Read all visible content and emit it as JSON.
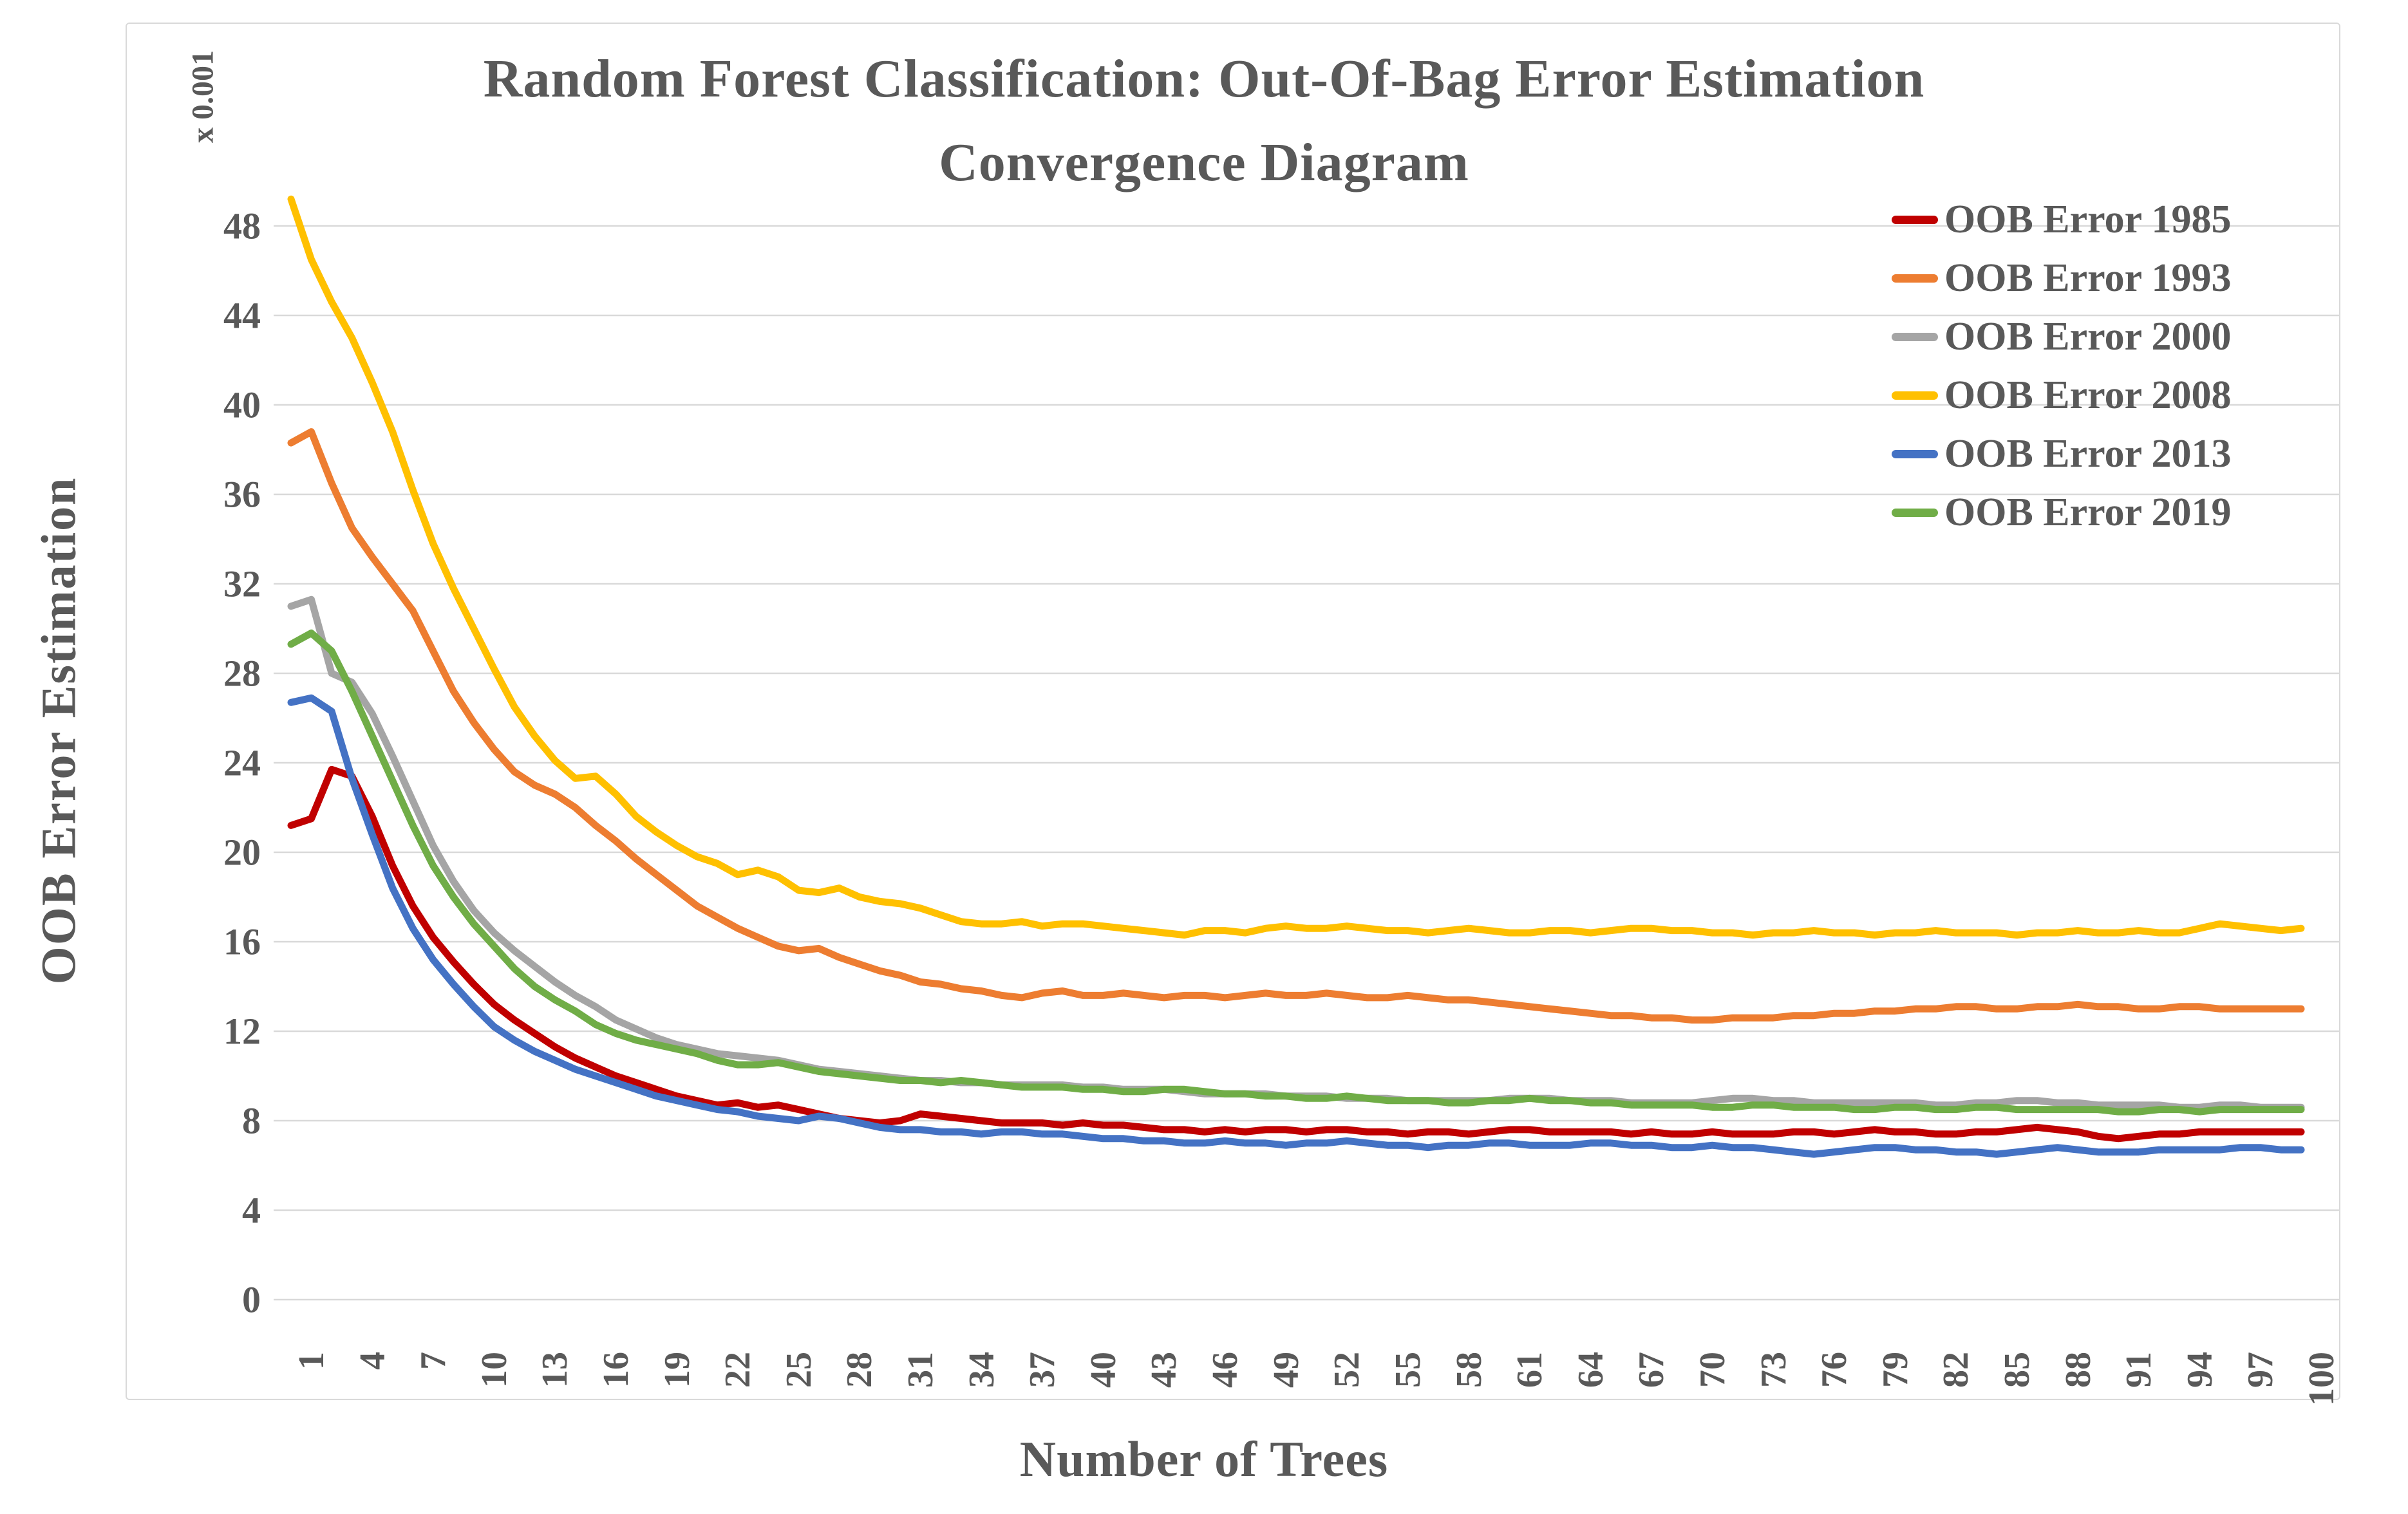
{
  "chart_data": {
    "type": "line",
    "title_line1": "Random Forest Classification: Out-Of-Bag Error Estimation",
    "title_line2": "Convergence Diagram",
    "xlabel": "Number of Trees",
    "ylabel": "OOB Error Estimation",
    "y_multiplier_label": "x 0.001",
    "x_range": [
      1,
      100
    ],
    "x_tick_step": 3,
    "x_tick_labels": [
      1,
      4,
      7,
      10,
      13,
      16,
      19,
      22,
      25,
      28,
      31,
      34,
      37,
      40,
      43,
      46,
      49,
      52,
      55,
      58,
      61,
      64,
      67,
      70,
      73,
      76,
      79,
      82,
      85,
      88,
      91,
      94,
      97,
      100
    ],
    "y_ticks": [
      0,
      4,
      8,
      12,
      16,
      20,
      24,
      28,
      32,
      36,
      40,
      44,
      48
    ],
    "ylim": [
      0,
      50.5
    ],
    "grid": true,
    "legend_position": "top-right-inside",
    "colors": {
      "text": "#595959",
      "gridline": "#d9d9d9",
      "border": "#d9d9d9",
      "background": "#ffffff"
    },
    "series": [
      {
        "name": "OOB Error 1985",
        "color": "#C00000",
        "values": [
          21.2,
          21.5,
          23.7,
          23.4,
          21.6,
          19.4,
          17.6,
          16.2,
          15.1,
          14.1,
          13.2,
          12.5,
          11.9,
          11.3,
          10.8,
          10.4,
          10.0,
          9.7,
          9.4,
          9.1,
          8.9,
          8.7,
          8.8,
          8.6,
          8.7,
          8.5,
          8.3,
          8.1,
          8.0,
          7.9,
          8.0,
          8.3,
          8.2,
          8.1,
          8.0,
          7.9,
          7.9,
          7.9,
          7.8,
          7.9,
          7.8,
          7.8,
          7.7,
          7.6,
          7.6,
          7.5,
          7.6,
          7.5,
          7.6,
          7.6,
          7.5,
          7.6,
          7.6,
          7.5,
          7.5,
          7.4,
          7.5,
          7.5,
          7.4,
          7.5,
          7.6,
          7.6,
          7.5,
          7.5,
          7.5,
          7.5,
          7.4,
          7.5,
          7.4,
          7.4,
          7.5,
          7.4,
          7.4,
          7.4,
          7.5,
          7.5,
          7.4,
          7.5,
          7.6,
          7.5,
          7.5,
          7.4,
          7.4,
          7.5,
          7.5,
          7.6,
          7.7,
          7.6,
          7.5,
          7.3,
          7.2,
          7.3,
          7.4,
          7.4,
          7.5,
          7.5,
          7.5,
          7.5,
          7.5,
          7.5
        ]
      },
      {
        "name": "OOB Error 1993",
        "color": "#ED7D31",
        "values": [
          38.3,
          38.8,
          36.5,
          34.5,
          33.2,
          32.0,
          30.8,
          29.0,
          27.2,
          25.8,
          24.6,
          23.6,
          23.0,
          22.6,
          22.0,
          21.2,
          20.5,
          19.7,
          19.0,
          18.3,
          17.6,
          17.1,
          16.6,
          16.2,
          15.8,
          15.6,
          15.7,
          15.3,
          15.0,
          14.7,
          14.5,
          14.2,
          14.1,
          13.9,
          13.8,
          13.6,
          13.5,
          13.7,
          13.8,
          13.6,
          13.6,
          13.7,
          13.6,
          13.5,
          13.6,
          13.6,
          13.5,
          13.6,
          13.7,
          13.6,
          13.6,
          13.7,
          13.6,
          13.5,
          13.5,
          13.6,
          13.5,
          13.4,
          13.4,
          13.3,
          13.2,
          13.1,
          13.0,
          12.9,
          12.8,
          12.7,
          12.7,
          12.6,
          12.6,
          12.5,
          12.5,
          12.6,
          12.6,
          12.6,
          12.7,
          12.7,
          12.8,
          12.8,
          12.9,
          12.9,
          13.0,
          13.0,
          13.1,
          13.1,
          13.0,
          13.0,
          13.1,
          13.1,
          13.2,
          13.1,
          13.1,
          13.0,
          13.0,
          13.1,
          13.1,
          13.0,
          13.0,
          13.0,
          13.0,
          13.0
        ]
      },
      {
        "name": "OOB Error 2000",
        "color": "#A5A5A5",
        "values": [
          31.0,
          31.3,
          28.0,
          27.6,
          26.2,
          24.3,
          22.3,
          20.3,
          18.7,
          17.4,
          16.4,
          15.6,
          14.9,
          14.2,
          13.6,
          13.1,
          12.5,
          12.1,
          11.7,
          11.4,
          11.2,
          11.0,
          10.9,
          10.8,
          10.7,
          10.5,
          10.3,
          10.2,
          10.1,
          10.0,
          9.9,
          9.8,
          9.8,
          9.7,
          9.7,
          9.6,
          9.6,
          9.6,
          9.6,
          9.5,
          9.5,
          9.4,
          9.4,
          9.4,
          9.3,
          9.2,
          9.2,
          9.2,
          9.2,
          9.1,
          9.1,
          9.1,
          9.0,
          9.0,
          9.0,
          8.9,
          8.9,
          8.9,
          8.9,
          8.9,
          9.0,
          9.0,
          9.0,
          8.9,
          8.9,
          8.9,
          8.8,
          8.8,
          8.8,
          8.8,
          8.9,
          9.0,
          9.0,
          8.9,
          8.9,
          8.8,
          8.8,
          8.8,
          8.8,
          8.8,
          8.8,
          8.7,
          8.7,
          8.8,
          8.8,
          8.9,
          8.9,
          8.8,
          8.8,
          8.7,
          8.7,
          8.7,
          8.7,
          8.6,
          8.6,
          8.7,
          8.7,
          8.6,
          8.6,
          8.6
        ]
      },
      {
        "name": "OOB Error 2008",
        "color": "#FFC000",
        "values": [
          49.2,
          46.5,
          44.6,
          43.0,
          41.0,
          38.8,
          36.2,
          33.8,
          31.8,
          30.0,
          28.2,
          26.5,
          25.2,
          24.1,
          23.3,
          23.4,
          22.6,
          21.6,
          20.9,
          20.3,
          19.8,
          19.5,
          19.0,
          19.2,
          18.9,
          18.3,
          18.2,
          18.4,
          18.0,
          17.8,
          17.7,
          17.5,
          17.2,
          16.9,
          16.8,
          16.8,
          16.9,
          16.7,
          16.8,
          16.8,
          16.7,
          16.6,
          16.5,
          16.4,
          16.3,
          16.5,
          16.5,
          16.4,
          16.6,
          16.7,
          16.6,
          16.6,
          16.7,
          16.6,
          16.5,
          16.5,
          16.4,
          16.5,
          16.6,
          16.5,
          16.4,
          16.4,
          16.5,
          16.5,
          16.4,
          16.5,
          16.6,
          16.6,
          16.5,
          16.5,
          16.4,
          16.4,
          16.3,
          16.4,
          16.4,
          16.5,
          16.4,
          16.4,
          16.3,
          16.4,
          16.4,
          16.5,
          16.4,
          16.4,
          16.4,
          16.3,
          16.4,
          16.4,
          16.5,
          16.4,
          16.4,
          16.5,
          16.4,
          16.4,
          16.6,
          16.8,
          16.7,
          16.6,
          16.5,
          16.6
        ]
      },
      {
        "name": "OOB Error 2013",
        "color": "#4472C4",
        "values": [
          26.7,
          26.9,
          26.3,
          23.3,
          20.8,
          18.4,
          16.6,
          15.2,
          14.1,
          13.1,
          12.2,
          11.6,
          11.1,
          10.7,
          10.3,
          10.0,
          9.7,
          9.4,
          9.1,
          8.9,
          8.7,
          8.5,
          8.4,
          8.2,
          8.1,
          8.0,
          8.2,
          8.1,
          7.9,
          7.7,
          7.6,
          7.6,
          7.5,
          7.5,
          7.4,
          7.5,
          7.5,
          7.4,
          7.4,
          7.3,
          7.2,
          7.2,
          7.1,
          7.1,
          7.0,
          7.0,
          7.1,
          7.0,
          7.0,
          6.9,
          7.0,
          7.0,
          7.1,
          7.0,
          6.9,
          6.9,
          6.8,
          6.9,
          6.9,
          7.0,
          7.0,
          6.9,
          6.9,
          6.9,
          7.0,
          7.0,
          6.9,
          6.9,
          6.8,
          6.8,
          6.9,
          6.8,
          6.8,
          6.7,
          6.6,
          6.5,
          6.6,
          6.7,
          6.8,
          6.8,
          6.7,
          6.7,
          6.6,
          6.6,
          6.5,
          6.6,
          6.7,
          6.8,
          6.7,
          6.6,
          6.6,
          6.6,
          6.7,
          6.7,
          6.7,
          6.7,
          6.8,
          6.8,
          6.7,
          6.7
        ]
      },
      {
        "name": "OOB Error 2019",
        "color": "#70AD47",
        "values": [
          29.3,
          29.8,
          29.0,
          27.2,
          25.2,
          23.2,
          21.2,
          19.4,
          18.0,
          16.8,
          15.8,
          14.8,
          14.0,
          13.4,
          12.9,
          12.3,
          11.9,
          11.6,
          11.4,
          11.2,
          11.0,
          10.7,
          10.5,
          10.5,
          10.6,
          10.4,
          10.2,
          10.1,
          10.0,
          9.9,
          9.8,
          9.8,
          9.7,
          9.8,
          9.7,
          9.6,
          9.5,
          9.5,
          9.5,
          9.4,
          9.4,
          9.3,
          9.3,
          9.4,
          9.4,
          9.3,
          9.2,
          9.2,
          9.1,
          9.1,
          9.0,
          9.0,
          9.1,
          9.0,
          8.9,
          8.9,
          8.9,
          8.8,
          8.8,
          8.9,
          8.9,
          9.0,
          8.9,
          8.9,
          8.8,
          8.8,
          8.7,
          8.7,
          8.7,
          8.7,
          8.6,
          8.6,
          8.7,
          8.7,
          8.6,
          8.6,
          8.6,
          8.5,
          8.5,
          8.6,
          8.6,
          8.5,
          8.5,
          8.6,
          8.6,
          8.5,
          8.5,
          8.5,
          8.5,
          8.5,
          8.4,
          8.4,
          8.5,
          8.5,
          8.4,
          8.5,
          8.5,
          8.5,
          8.5,
          8.5
        ]
      }
    ]
  }
}
